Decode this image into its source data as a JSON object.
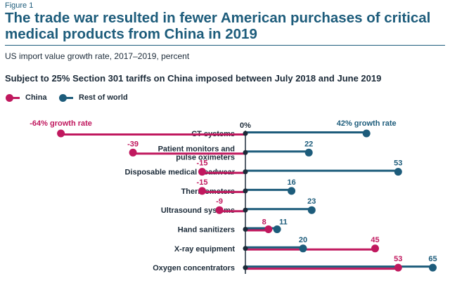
{
  "figure_label": "Figure 1",
  "title": "The trade war resulted in fewer American purchases of critical medical products from China in 2019",
  "subtitle": "US import value growth rate, 2017–2019, percent",
  "chart_data": {
    "type": "dot-line",
    "heading": "Subject to 25% Section 301 tariffs on China imposed between July 2018 and June 2019",
    "categories": [
      [
        "CT systems"
      ],
      [
        "Patient monitors and",
        "pulse oximeters"
      ],
      [
        "Disposable medical headwear"
      ],
      [
        "Thermometers"
      ],
      [
        "Ultrasound systems"
      ],
      [
        "Hand sanitizers"
      ],
      [
        "X-ray equipment"
      ],
      [
        "Oxygen concentrators"
      ]
    ],
    "series": [
      {
        "name": "China",
        "color": "#c0185e",
        "values": [
          -64,
          -39,
          -15,
          -15,
          -9,
          8,
          45,
          53
        ],
        "labels": [
          "-64% growth rate",
          "-39",
          "-15",
          "-15",
          "-9",
          "8",
          "45",
          "53"
        ]
      },
      {
        "name": "Rest of world",
        "color": "#1d5c7b",
        "values": [
          42,
          22,
          53,
          16,
          23,
          11,
          20,
          65
        ],
        "labels": [
          "42% growth rate",
          "22",
          "53",
          "16",
          "23",
          "11",
          "20",
          "65"
        ]
      }
    ],
    "zero_label": "0%",
    "xlim": [
      -64,
      65
    ],
    "axis_color": "#1b2a38",
    "label_color": "#1b2a38"
  }
}
